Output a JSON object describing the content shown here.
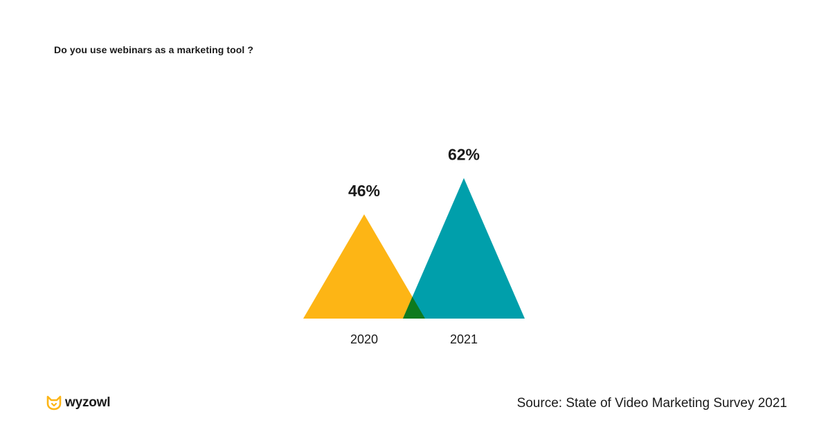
{
  "title": "Do you use webinars as a marketing tool ?",
  "source": "Source: State of Video Marketing Survey 2021",
  "brand": {
    "name": "wyzowl",
    "icon": "fox-head-icon"
  },
  "colors": {
    "series_2020": "#FDB515",
    "series_2021": "#009FAB",
    "overlap": "#0E7A1E"
  },
  "chart_data": {
    "type": "bar",
    "shape": "triangle",
    "categories": [
      "2020",
      "2021"
    ],
    "values": [
      46,
      62
    ],
    "value_labels": [
      "46%",
      "62%"
    ],
    "unit": "%",
    "title": "Do you use webinars as a marketing tool ?",
    "xlabel": "",
    "ylabel": "",
    "grid": false
  }
}
